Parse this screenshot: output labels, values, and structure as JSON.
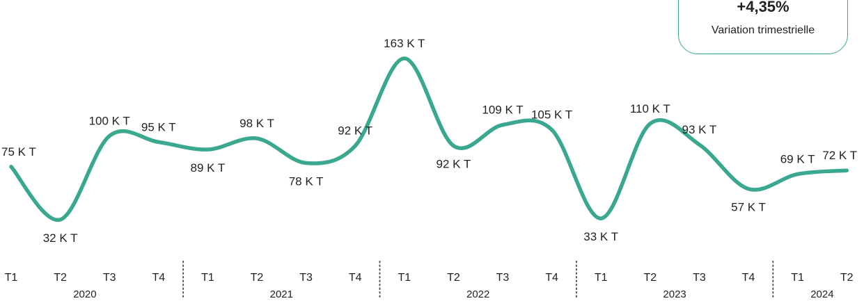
{
  "kpi": {
    "value": "+4,35%",
    "label": "Variation trimestrielle"
  },
  "colors": {
    "line": "#3aa88f",
    "separator": "#555555"
  },
  "chart_data": {
    "type": "line",
    "x": [
      "T1",
      "T2",
      "T3",
      "T4",
      "T1",
      "T2",
      "T3",
      "T4",
      "T1",
      "T2",
      "T3",
      "T4",
      "T1",
      "T2",
      "T3",
      "T4",
      "T1",
      "T2"
    ],
    "years": [
      {
        "label": "2020",
        "quarters": 4
      },
      {
        "label": "2021",
        "quarters": 4
      },
      {
        "label": "2022",
        "quarters": 4
      },
      {
        "label": "2023",
        "quarters": 4
      },
      {
        "label": "2024",
        "quarters": 2
      }
    ],
    "values": [
      75,
      32,
      100,
      95,
      89,
      98,
      78,
      92,
      163,
      92,
      109,
      105,
      33,
      110,
      93,
      57,
      69,
      72
    ],
    "data_labels": [
      "75 K T",
      "32 K T",
      "100 K T",
      "95 K T",
      "89 K T",
      "98 K T",
      "78 K T",
      "92 K T",
      "163 K T",
      "92 K T",
      "109 K T",
      "105 K T",
      "33 K T",
      "110 K T",
      "93 K T",
      "57 K T",
      "69 K T",
      "72 K T"
    ],
    "ylim": [
      0,
      180
    ],
    "grid": false,
    "legend": "none"
  }
}
